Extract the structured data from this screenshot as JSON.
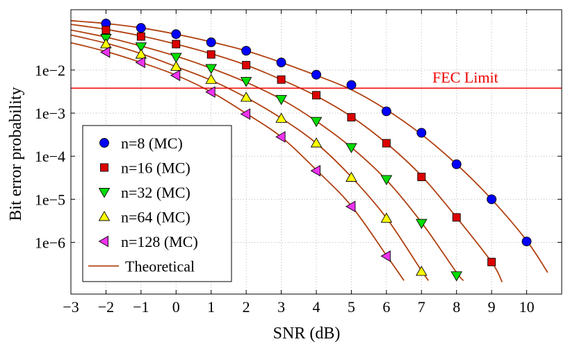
{
  "chart_data": {
    "type": "line",
    "title": "",
    "xlabel": "SNR (dB)",
    "ylabel": "Bit error probability",
    "xlim": [
      -3,
      11
    ],
    "ylim_log10": [
      -7.2,
      -0.6
    ],
    "x_ticks": [
      -3,
      -2,
      -1,
      0,
      1,
      2,
      3,
      4,
      5,
      6,
      7,
      8,
      9,
      10
    ],
    "x_tick_labels": [
      "−3",
      "−2",
      "−1",
      "0",
      "1",
      "2",
      "3",
      "4",
      "5",
      "6",
      "7",
      "8",
      "9",
      "10"
    ],
    "y_ticks": [
      1e-06,
      1e-05,
      0.0001,
      0.001,
      0.01
    ],
    "y_tick_labels": [
      "1e−6",
      "1e−5",
      "1e−4",
      "1e−3",
      "1e−2"
    ],
    "grid": true,
    "legend_position": "bottom-left",
    "series": [
      {
        "name": "n=8 (MC)",
        "marker": "circle",
        "color": "#0000ff",
        "x": [
          -2,
          -1,
          0,
          1,
          2,
          3,
          4,
          5,
          6,
          7,
          8,
          9,
          10
        ],
        "y": [
          0.12,
          0.095,
          0.068,
          0.044,
          0.028,
          0.015,
          0.0078,
          0.0045,
          0.0011,
          0.00035,
          6.5e-05,
          1e-05,
          1.05e-06
        ]
      },
      {
        "name": "n=16 (MC)",
        "marker": "square",
        "color": "#dd0000",
        "x": [
          -2,
          -1,
          0,
          1,
          2,
          3,
          4,
          5,
          6,
          7,
          8,
          9
        ],
        "y": [
          0.085,
          0.06,
          0.04,
          0.023,
          0.013,
          0.006,
          0.0026,
          0.0008,
          0.0002,
          3.3e-05,
          3.8e-06,
          3.5e-07
        ]
      },
      {
        "name": "n=32 (MC)",
        "marker": "triangle-down",
        "color": "#00dd00",
        "x": [
          -2,
          -1,
          0,
          1,
          2,
          3,
          4,
          5,
          6,
          7,
          8
        ],
        "y": [
          0.055,
          0.035,
          0.02,
          0.011,
          0.0055,
          0.0021,
          0.00065,
          0.00016,
          2.9e-05,
          2.8e-06,
          1.7e-07
        ]
      },
      {
        "name": "n=64 (MC)",
        "marker": "triangle-up",
        "color": "#ffff00",
        "x": [
          -2,
          -1,
          0,
          1,
          2,
          3,
          4,
          5,
          6,
          7
        ],
        "y": [
          0.04,
          0.023,
          0.012,
          0.006,
          0.0023,
          0.00075,
          0.0002,
          3.2e-05,
          3.6e-06,
          2.1e-07
        ]
      },
      {
        "name": "n=128 (MC)",
        "marker": "triangle-left",
        "color": "#ee33ee",
        "x": [
          -2,
          -1,
          0,
          1,
          2,
          3,
          4,
          5,
          6
        ],
        "y": [
          0.026,
          0.015,
          0.0075,
          0.0031,
          0.00095,
          0.00028,
          4.6e-05,
          6.8e-06,
          4.8e-07
        ]
      }
    ],
    "theoretical": {
      "name": "Theoretical",
      "color": "#b04010",
      "curves": [
        {
          "x": [
            -3,
            -2,
            -1,
            0,
            1,
            2,
            3,
            4,
            5,
            6,
            7,
            8,
            9,
            10,
            10.6
          ],
          "y": [
            0.14,
            0.12,
            0.095,
            0.068,
            0.045,
            0.028,
            0.015,
            0.0075,
            0.0035,
            0.0012,
            0.00032,
            6.5e-05,
            1e-05,
            1.1e-06,
            2e-07
          ]
        },
        {
          "x": [
            -3,
            -2,
            -1,
            0,
            1,
            2,
            3,
            4,
            5,
            6,
            7,
            8,
            9,
            9.3
          ],
          "y": [
            0.115,
            0.088,
            0.062,
            0.04,
            0.024,
            0.013,
            0.006,
            0.0025,
            0.00083,
            0.0002,
            3.5e-05,
            3.8e-06,
            3.5e-07,
            1.2e-07
          ]
        },
        {
          "x": [
            -3,
            -2,
            -1,
            0,
            1,
            2,
            3,
            4,
            5,
            6,
            7,
            8,
            8.2
          ],
          "y": [
            0.085,
            0.058,
            0.036,
            0.021,
            0.011,
            0.0052,
            0.0021,
            0.00065,
            0.00016,
            2.8e-05,
            2.9e-06,
            2e-07,
            1.3e-07
          ]
        },
        {
          "x": [
            -3,
            -2,
            -1,
            0,
            1,
            2,
            3,
            4,
            5,
            6,
            7,
            7.2
          ],
          "y": [
            0.065,
            0.042,
            0.024,
            0.012,
            0.0058,
            0.0023,
            0.00076,
            0.0002,
            3.3e-05,
            3.7e-06,
            2.2e-07,
            1.3e-07
          ]
        },
        {
          "x": [
            -3,
            -2,
            -1,
            0,
            1,
            2,
            3,
            4,
            5,
            6,
            6.5
          ],
          "y": [
            0.043,
            0.027,
            0.015,
            0.0076,
            0.0031,
            0.00098,
            0.00028,
            4.8e-05,
            7e-06,
            5e-07,
            1.3e-07
          ]
        }
      ]
    },
    "reference_line": {
      "label": "FEC Limit",
      "y": 0.0038,
      "x_range": [
        -3,
        11
      ],
      "color": "#ee0000"
    }
  }
}
